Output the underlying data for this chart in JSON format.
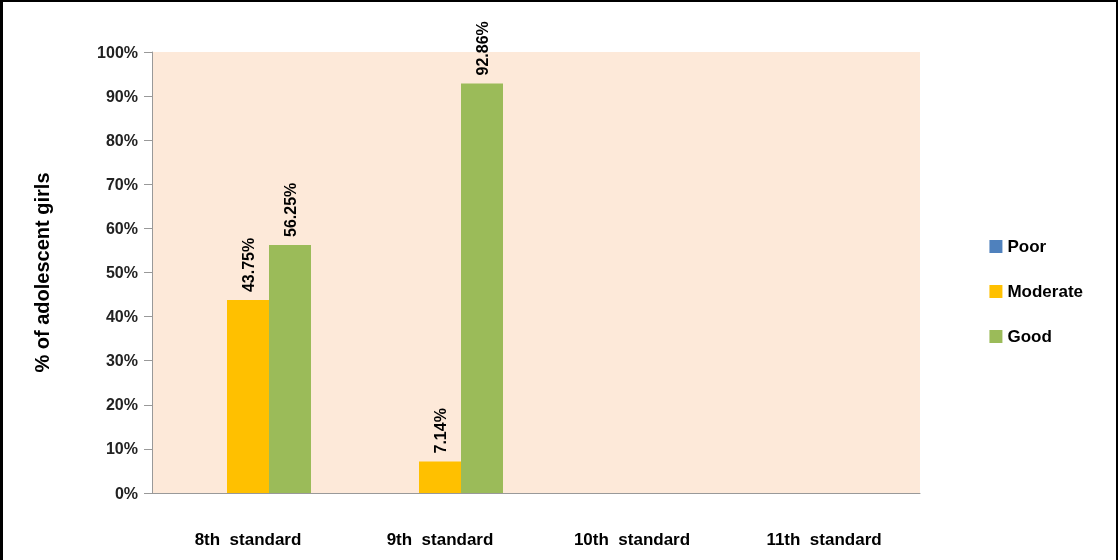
{
  "chart_data": {
    "type": "bar",
    "ylabel": "% of adolescent girls",
    "categories": [
      "8th  standard",
      "9th  standard",
      "10th  standard",
      "11th  standard"
    ],
    "series": [
      {
        "name": "Poor",
        "color": "#4f81bd",
        "values": [
          0,
          0,
          0,
          0
        ],
        "value_labels": [
          null,
          null,
          null,
          null
        ]
      },
      {
        "name": "Moderate",
        "color": "#ffc000",
        "values": [
          43.75,
          7.14,
          0,
          0
        ],
        "value_labels": [
          "43.75%",
          "7.14%",
          null,
          null
        ]
      },
      {
        "name": "Good",
        "color": "#9bbb59",
        "values": [
          56.25,
          92.86,
          0,
          0
        ],
        "value_labels": [
          "56.25%",
          "92.86%",
          null,
          null
        ]
      }
    ],
    "ylim": [
      0,
      100
    ],
    "yticks": [
      {
        "value": 0,
        "label": "0%"
      },
      {
        "value": 10,
        "label": "10%"
      },
      {
        "value": 20,
        "label": "20%"
      },
      {
        "value": 30,
        "label": "30%"
      },
      {
        "value": 40,
        "label": "40%"
      },
      {
        "value": 50,
        "label": "50%"
      },
      {
        "value": 60,
        "label": "60%"
      },
      {
        "value": 70,
        "label": "70%"
      },
      {
        "value": 80,
        "label": "80%"
      },
      {
        "value": 90,
        "label": "90%"
      },
      {
        "value": 100,
        "label": "100%"
      }
    ],
    "grid": false,
    "legend": "right"
  }
}
